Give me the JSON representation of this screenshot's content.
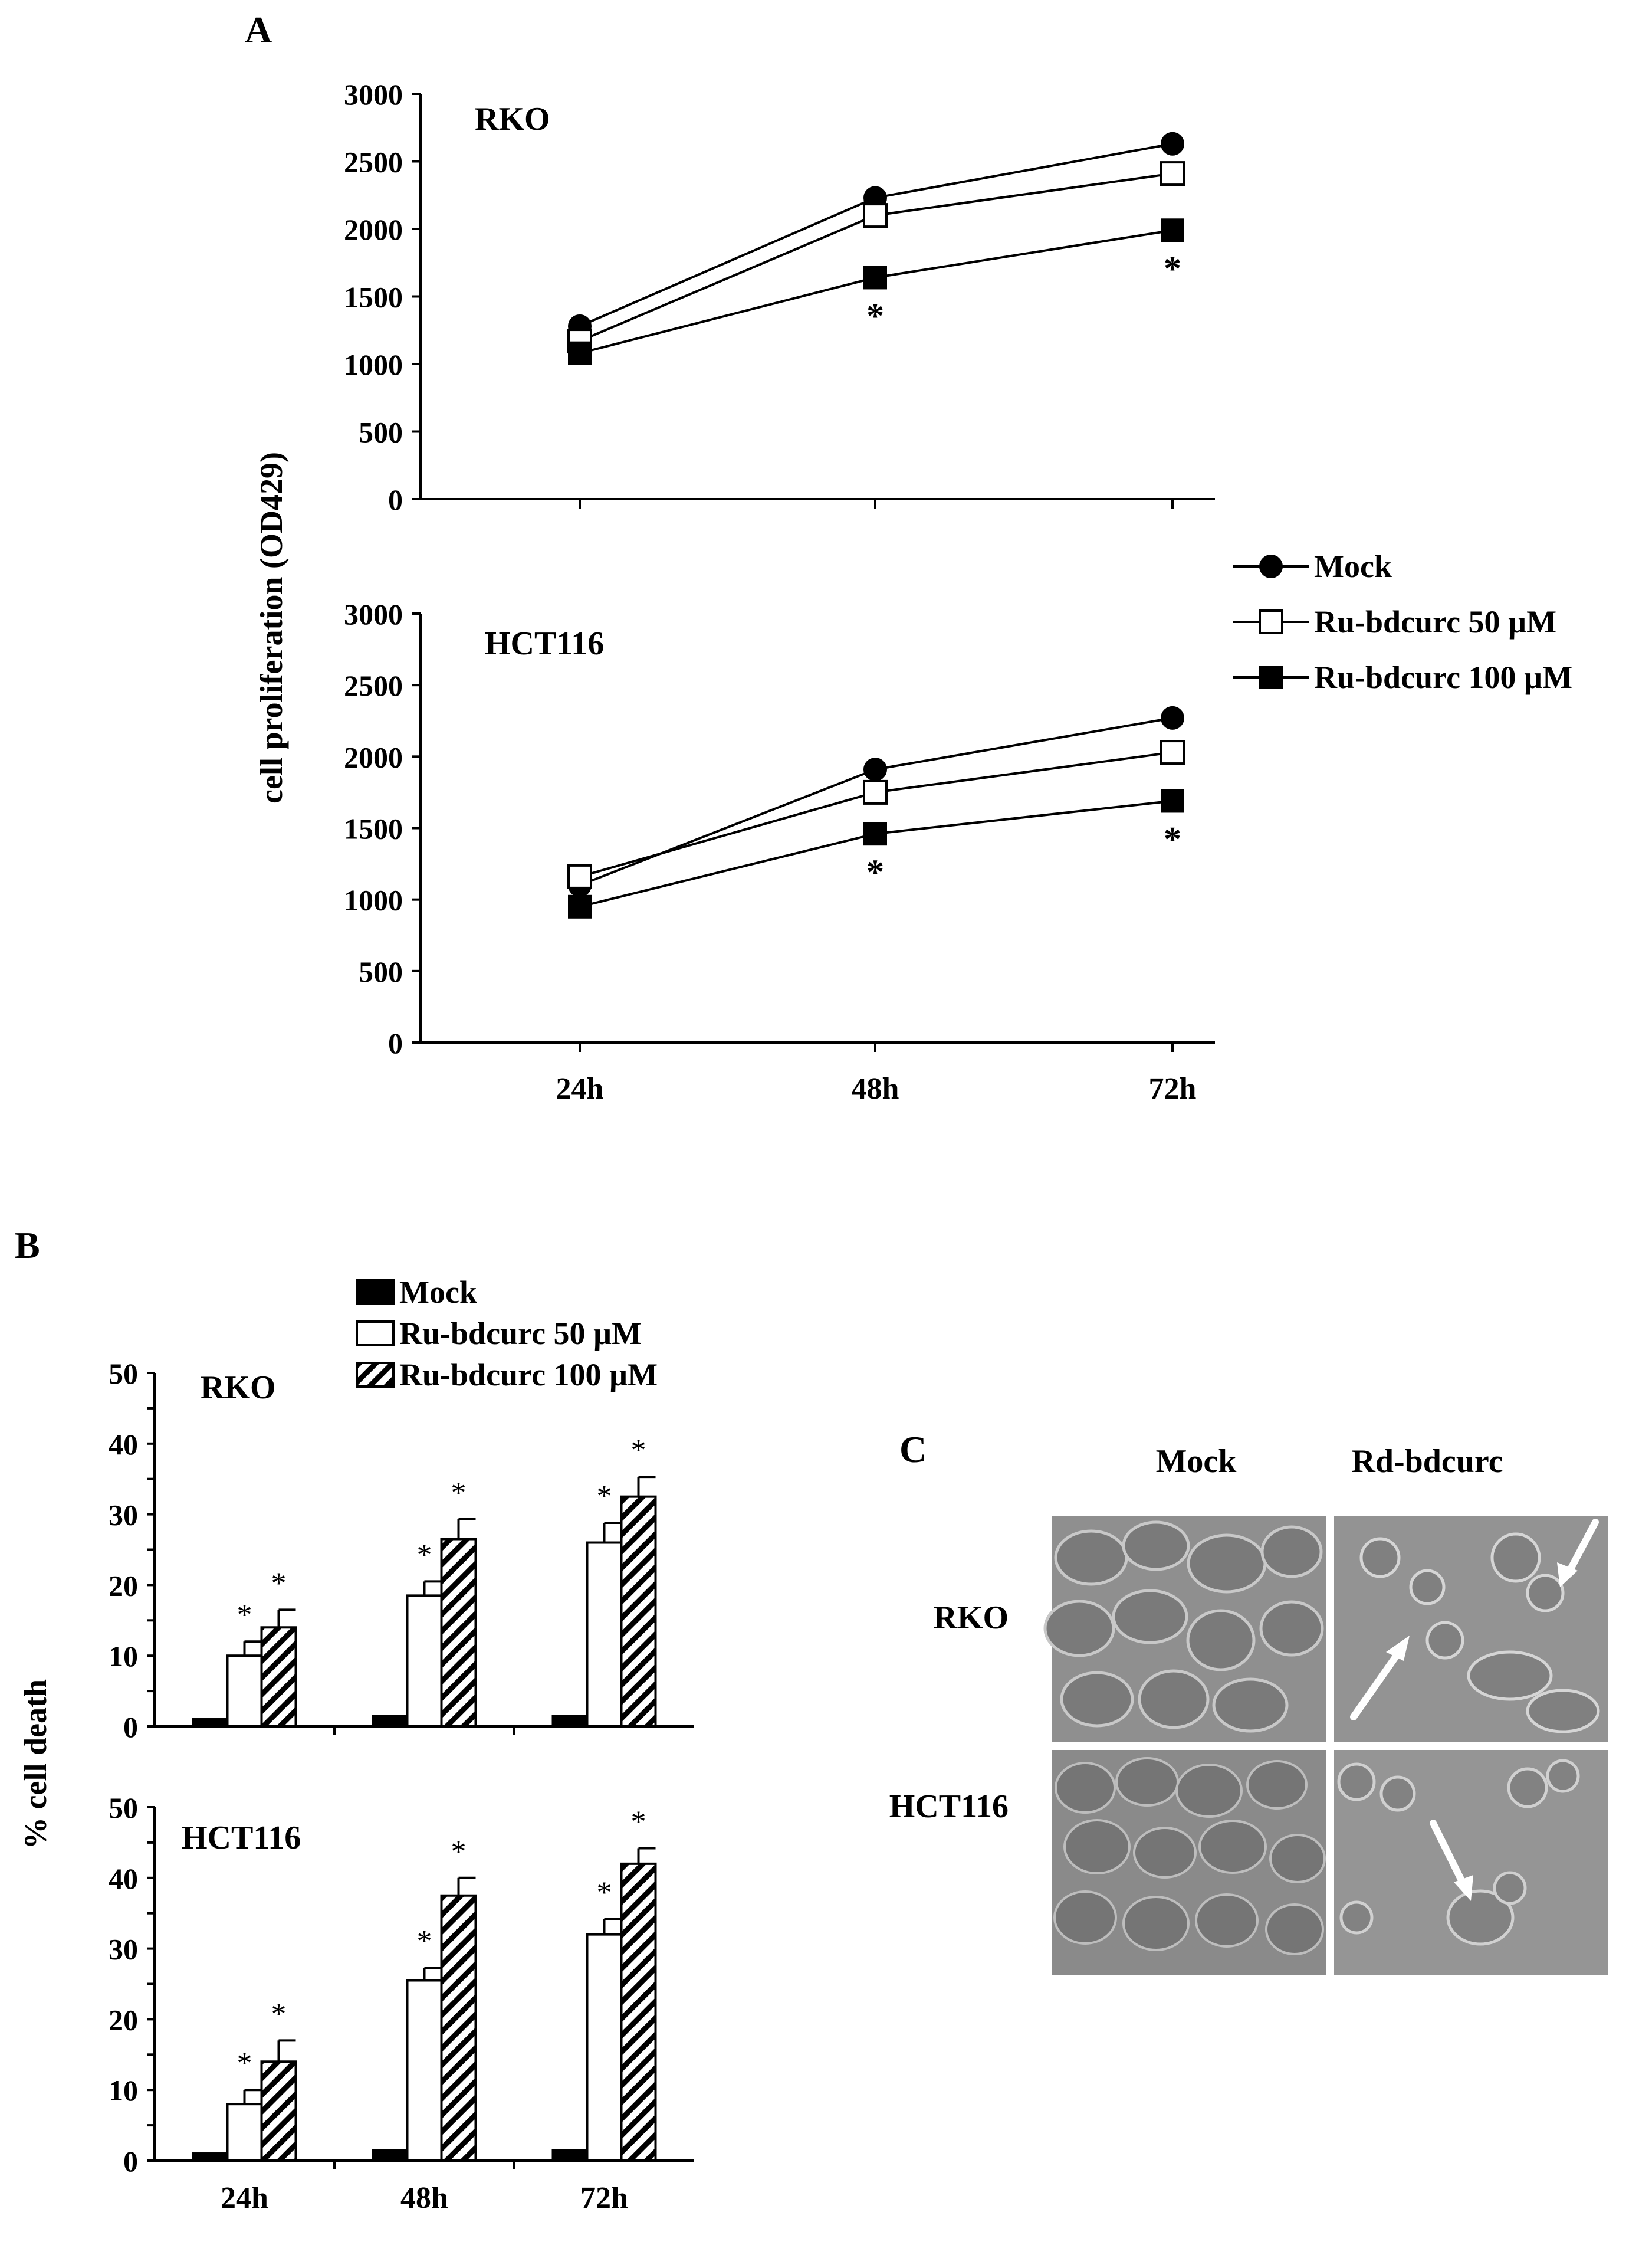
{
  "panels": {
    "A": {
      "label": "A",
      "ylabel": "cell proliferation  (OD429)",
      "legend": [
        "Mock",
        "Ru-bdcurc    50 µM",
        "Ru-bdcurc  100 µM"
      ]
    },
    "B": {
      "label": "B",
      "ylabel": "% cell death",
      "legend": [
        "Mock",
        "Ru-bdcurc    50 µM",
        "Ru-bdcurc  100 µM"
      ]
    },
    "C": {
      "label": "C",
      "col_labels": [
        "Mock",
        "Rd-bdcurc"
      ],
      "row_labels": [
        "RKO",
        "HCT116"
      ]
    }
  },
  "chart_data": [
    {
      "type": "line",
      "panel": "A",
      "cell_line": "RKO",
      "categories": [
        "24h",
        "48h",
        "72h"
      ],
      "ylim": [
        0,
        3000
      ],
      "yticks": [
        0,
        500,
        1000,
        1500,
        2000,
        2500,
        3000
      ],
      "series": [
        {
          "name": "Mock",
          "marker": "filled-circle",
          "values": [
            1280,
            2230,
            2630
          ]
        },
        {
          "name": "Ru-bdcurc    50 µM",
          "marker": "open-square",
          "values": [
            1170,
            2100,
            2410
          ]
        },
        {
          "name": "Ru-bdcurc  100 µM",
          "marker": "filled-square",
          "values": [
            1080,
            1640,
            1990
          ]
        }
      ],
      "significance": [
        "",
        "*",
        "*"
      ]
    },
    {
      "type": "line",
      "panel": "A",
      "cell_line": "HCT116",
      "categories": [
        "24h",
        "48h",
        "72h"
      ],
      "ylim": [
        0,
        3000
      ],
      "yticks": [
        0,
        500,
        1000,
        1500,
        2000,
        2500,
        3000
      ],
      "series": [
        {
          "name": "Mock",
          "marker": "filled-circle",
          "values": [
            1100,
            1910,
            2270
          ]
        },
        {
          "name": "Ru-bdcurc    50 µM",
          "marker": "open-square",
          "values": [
            1160,
            1750,
            2030
          ]
        },
        {
          "name": "Ru-bdcurc  100 µM",
          "marker": "filled-square",
          "values": [
            950,
            1460,
            1690
          ]
        }
      ],
      "significance": [
        "",
        "*",
        "*"
      ]
    },
    {
      "type": "bar",
      "panel": "B",
      "cell_line": "RKO",
      "categories": [
        "24h",
        "48h",
        "72h"
      ],
      "ylim": [
        0,
        50
      ],
      "yticks": [
        0,
        10,
        20,
        30,
        40,
        50
      ],
      "series": [
        {
          "name": "Mock",
          "fill": "solid-black",
          "values": [
            1,
            1.5,
            1.5
          ],
          "errors": [
            0,
            0,
            0
          ],
          "marks": [
            "",
            "",
            ""
          ]
        },
        {
          "name": "Ru-bdcurc    50 µM",
          "fill": "white",
          "values": [
            10,
            18.5,
            26
          ],
          "errors": [
            2,
            2,
            2.8
          ],
          "marks": [
            "*",
            "*",
            "*"
          ]
        },
        {
          "name": "Ru-bdcurc  100 µM",
          "fill": "hatched",
          "values": [
            14,
            26.5,
            32.5
          ],
          "errors": [
            2.5,
            2.8,
            2.8
          ],
          "marks": [
            "*",
            "*",
            "*"
          ]
        }
      ]
    },
    {
      "type": "bar",
      "panel": "B",
      "cell_line": "HCT116",
      "categories": [
        "24h",
        "48h",
        "72h"
      ],
      "ylim": [
        0,
        50
      ],
      "yticks": [
        0,
        10,
        20,
        30,
        40,
        50
      ],
      "series": [
        {
          "name": "Mock",
          "fill": "solid-black",
          "values": [
            1,
            1.5,
            1.5
          ],
          "errors": [
            0,
            0,
            0
          ],
          "marks": [
            "",
            "",
            ""
          ]
        },
        {
          "name": "Ru-bdcurc    50 µM",
          "fill": "white",
          "values": [
            8,
            25.5,
            32
          ],
          "errors": [
            2,
            1.8,
            2.2
          ],
          "marks": [
            "*",
            "*",
            "*"
          ]
        },
        {
          "name": "Ru-bdcurc  100 µM",
          "fill": "hatched",
          "values": [
            14,
            37.5,
            42
          ],
          "errors": [
            3,
            2.5,
            2.2
          ],
          "marks": [
            "*",
            "*",
            "*"
          ]
        }
      ]
    }
  ]
}
